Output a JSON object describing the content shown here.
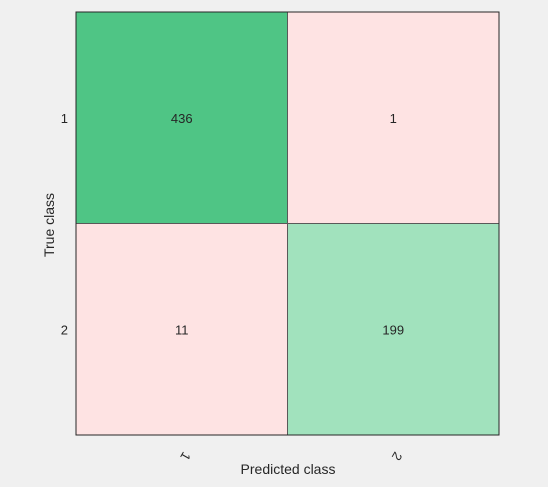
{
  "chart_data": {
    "type": "heatmap",
    "title": "",
    "xlabel": "Predicted class",
    "ylabel": "True class",
    "row_labels": [
      "1",
      "2"
    ],
    "col_labels": [
      "1",
      "2"
    ],
    "values": [
      [
        436,
        1
      ],
      [
        11,
        199
      ]
    ],
    "grid": false,
    "colors": {
      "strong_correct": "#4fc585",
      "weak_correct": "#a1e2bd",
      "incorrect": "#fee3e3",
      "cell_border": "#595959",
      "background": "#f0f0f0",
      "text": "#262626"
    }
  }
}
